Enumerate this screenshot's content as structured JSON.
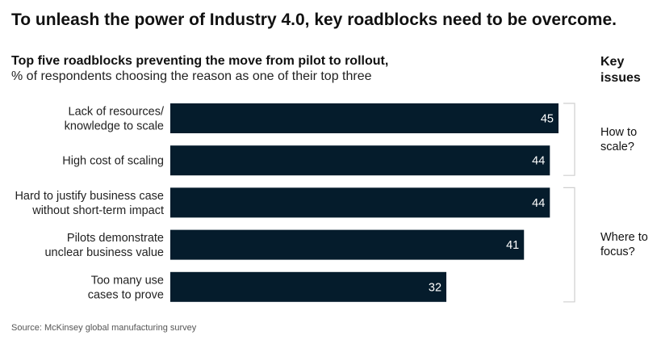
{
  "headline": "To unleash the power of Industry 4.0, key roadblocks need to be overcome.",
  "subtitle_bold": "Top five roadblocks preventing the move from pilot to rollout,",
  "subtitle_regular": "% of respondents choosing the reason as one of their top three",
  "key_issues_header": "Key issues",
  "source": "Source: McKinsey global manufacturing survey",
  "colors": {
    "bar": "#051c2c",
    "bracket": "#cfcfcf"
  },
  "chart_data": {
    "type": "bar",
    "orientation": "horizontal",
    "categories": [
      [
        "Lack of resources/",
        "knowledge to scale"
      ],
      [
        "High cost of scaling"
      ],
      [
        "Hard to justify business case",
        "without short-term impact"
      ],
      [
        "Pilots demonstrate",
        "unclear business value"
      ],
      [
        "Too many use",
        "cases to prove"
      ]
    ],
    "values": [
      45,
      44,
      44,
      41,
      32
    ],
    "xlim": [
      0,
      45
    ],
    "grid": false,
    "legend": "none",
    "groups": [
      {
        "label": "How to scale?",
        "members": [
          0,
          1
        ]
      },
      {
        "label": "Where to focus?",
        "members": [
          2,
          3,
          4
        ]
      }
    ]
  }
}
